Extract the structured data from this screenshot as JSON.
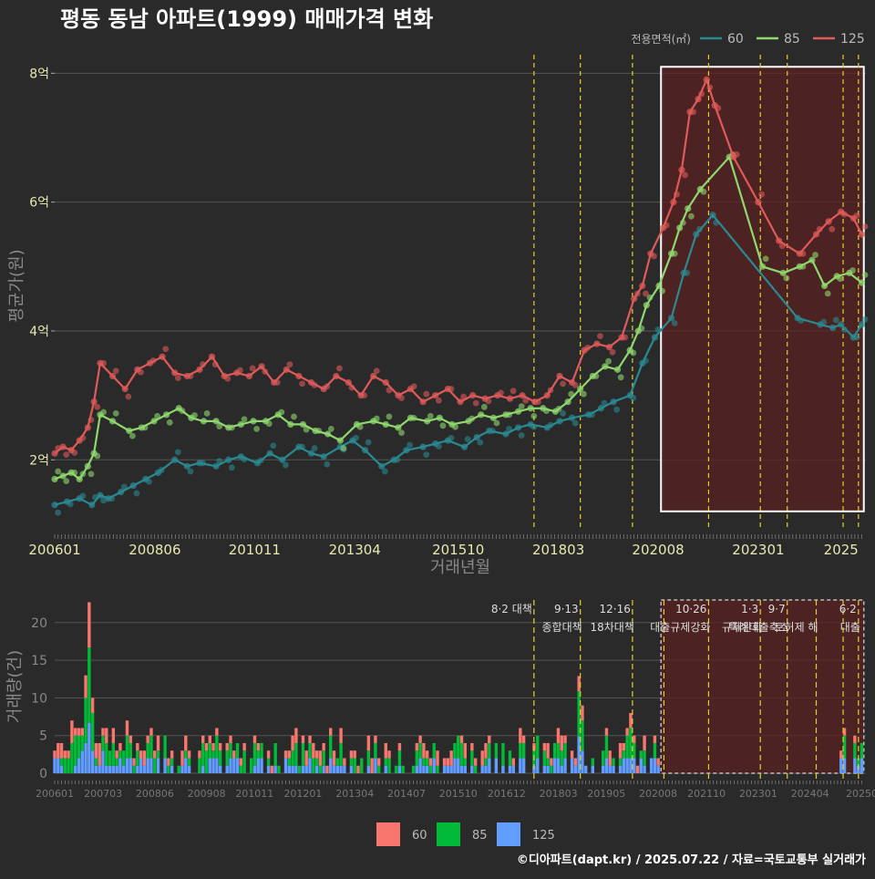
{
  "title": "평동 동남 아파트(1999) 매매가격 변화",
  "footer": "©디아파트(dapt.kr) / 2025.07.22 / 자료=국토교통부 실거래가",
  "colors": {
    "background": "#2a2a2b",
    "grid": "#555555",
    "s60": "#2a8a91",
    "s85": "#8fd86e",
    "s125": "#e05a5a",
    "b60": "#f8766d",
    "b85": "#00ba38",
    "b125": "#619cff",
    "policy": "#e6d02a",
    "highlight": "#5a2020"
  },
  "chart_data": [
    {
      "type": "line",
      "title": "평동 동남 아파트(1999) 매매가격 변화",
      "xlabel": "거래년월",
      "ylabel": "평균가(원)",
      "xlim": [
        2006.0,
        2025.6
      ],
      "ylim": [
        0.9,
        8.5
      ],
      "y_unit": "억",
      "yticks": [
        {
          "v": 2,
          "label": "2억"
        },
        {
          "v": 4,
          "label": "4억"
        },
        {
          "v": 6,
          "label": "6억"
        },
        {
          "v": 8,
          "label": "8억"
        }
      ],
      "xticks": [
        {
          "t": 2006.0,
          "label": "200601"
        },
        {
          "t": 2008.42,
          "label": "200806"
        },
        {
          "t": 2010.83,
          "label": "201011"
        },
        {
          "t": 2013.25,
          "label": "201304"
        },
        {
          "t": 2015.75,
          "label": "201510"
        },
        {
          "t": 2018.17,
          "label": "201803"
        },
        {
          "t": 2020.58,
          "label": "202008"
        },
        {
          "t": 2023.0,
          "label": "202301"
        },
        {
          "t": 2025.0,
          "label": "2025"
        }
      ],
      "legend": {
        "title": "전용면적(㎡)",
        "position": "top-right",
        "entries": [
          "60",
          "85",
          "125"
        ]
      },
      "highlight_range": {
        "x": [
          2020.65,
          2025.55
        ],
        "y": [
          1.2,
          8.1
        ]
      },
      "policy_dates": [
        2017.58,
        2018.7,
        2019.96,
        2021.8,
        2023.05,
        2023.7,
        2025.05,
        2025.42
      ],
      "series": [
        {
          "name": "60",
          "color": "#2a8a91",
          "x": [
            2006.0,
            2006.3,
            2006.6,
            2006.9,
            2007.1,
            2007.3,
            2007.6,
            2007.9,
            2008.2,
            2008.5,
            2008.9,
            2009.2,
            2009.5,
            2009.9,
            2010.2,
            2010.5,
            2010.9,
            2011.2,
            2011.5,
            2011.9,
            2012.2,
            2012.5,
            2012.9,
            2013.2,
            2013.5,
            2013.9,
            2014.2,
            2014.5,
            2014.9,
            2015.2,
            2015.5,
            2015.9,
            2016.2,
            2016.5,
            2016.9,
            2017.2,
            2017.5,
            2017.9,
            2018.2,
            2018.5,
            2018.9,
            2019.2,
            2019.5,
            2019.9,
            2020.2,
            2020.5,
            2020.9,
            2021.2,
            2021.5,
            2021.9,
            2023.95,
            2024.5,
            2024.8,
            2025.0,
            2025.3,
            2025.5
          ],
          "y": [
            1.3,
            1.35,
            1.4,
            1.3,
            1.45,
            1.4,
            1.5,
            1.6,
            1.7,
            1.8,
            2.0,
            1.9,
            1.95,
            1.9,
            2.0,
            2.05,
            1.95,
            2.1,
            2.0,
            2.2,
            2.1,
            2.05,
            2.2,
            2.3,
            2.15,
            1.9,
            2.0,
            2.15,
            2.2,
            2.25,
            2.3,
            2.2,
            2.35,
            2.45,
            2.4,
            2.5,
            2.55,
            2.5,
            2.6,
            2.65,
            2.7,
            2.8,
            2.9,
            3.0,
            3.5,
            3.9,
            4.2,
            4.9,
            5.5,
            5.8,
            4.2,
            4.1,
            4.05,
            4.1,
            3.9,
            4.1
          ]
        },
        {
          "name": "85",
          "color": "#8fd86e",
          "x": [
            2006.0,
            2006.2,
            2006.4,
            2006.6,
            2006.8,
            2006.95,
            2007.1,
            2007.4,
            2007.8,
            2008.1,
            2008.4,
            2008.7,
            2009.0,
            2009.3,
            2009.6,
            2009.9,
            2010.2,
            2010.5,
            2010.8,
            2011.1,
            2011.4,
            2011.7,
            2012.0,
            2012.3,
            2012.6,
            2012.9,
            2013.3,
            2013.7,
            2014.0,
            2014.3,
            2014.6,
            2015.0,
            2015.3,
            2015.6,
            2016.0,
            2016.3,
            2016.6,
            2016.9,
            2017.2,
            2017.5,
            2017.8,
            2018.1,
            2018.4,
            2018.7,
            2019.0,
            2019.3,
            2019.6,
            2019.9,
            2020.1,
            2020.3,
            2020.6,
            2020.9,
            2021.1,
            2021.3,
            2021.6,
            2022.3,
            2023.1,
            2023.6,
            2024.0,
            2024.3,
            2024.6,
            2024.9,
            2025.2,
            2025.5
          ],
          "y": [
            1.7,
            1.75,
            1.8,
            1.7,
            1.9,
            2.1,
            2.7,
            2.6,
            2.45,
            2.5,
            2.6,
            2.7,
            2.8,
            2.65,
            2.6,
            2.6,
            2.5,
            2.55,
            2.6,
            2.6,
            2.7,
            2.55,
            2.55,
            2.45,
            2.4,
            2.3,
            2.55,
            2.6,
            2.55,
            2.5,
            2.65,
            2.6,
            2.65,
            2.55,
            2.6,
            2.7,
            2.65,
            2.7,
            2.75,
            2.8,
            2.8,
            2.75,
            2.9,
            3.1,
            3.3,
            3.45,
            3.4,
            3.7,
            4.0,
            4.4,
            4.7,
            5.2,
            5.6,
            5.9,
            6.2,
            6.7,
            5.0,
            4.9,
            5.0,
            5.1,
            4.7,
            4.85,
            4.9,
            4.75
          ]
        },
        {
          "name": "125",
          "color": "#e05a5a",
          "x": [
            2006.0,
            2006.2,
            2006.4,
            2006.6,
            2006.8,
            2006.95,
            2007.1,
            2007.4,
            2007.7,
            2008.0,
            2008.3,
            2008.6,
            2008.9,
            2009.2,
            2009.5,
            2009.8,
            2010.1,
            2010.4,
            2010.7,
            2011.0,
            2011.3,
            2011.6,
            2011.9,
            2012.2,
            2012.5,
            2012.8,
            2013.1,
            2013.4,
            2013.7,
            2014.0,
            2014.3,
            2014.6,
            2014.9,
            2015.2,
            2015.5,
            2015.8,
            2016.1,
            2016.4,
            2016.7,
            2017.0,
            2017.3,
            2017.6,
            2017.9,
            2018.2,
            2018.5,
            2018.8,
            2019.1,
            2019.4,
            2019.7,
            2020.0,
            2020.2,
            2020.4,
            2020.7,
            2020.95,
            2021.15,
            2021.35,
            2021.55,
            2021.75,
            2021.95,
            2022.4,
            2023.0,
            2023.5,
            2024.0,
            2024.4,
            2024.7,
            2025.0,
            2025.3,
            2025.5
          ],
          "y": [
            2.1,
            2.2,
            2.15,
            2.3,
            2.5,
            2.9,
            3.5,
            3.3,
            3.1,
            3.4,
            3.5,
            3.6,
            3.35,
            3.3,
            3.4,
            3.6,
            3.3,
            3.35,
            3.3,
            3.45,
            3.2,
            3.4,
            3.3,
            3.2,
            3.1,
            3.3,
            3.2,
            3.0,
            3.3,
            3.2,
            3.0,
            3.1,
            2.9,
            3.0,
            3.1,
            2.9,
            3.0,
            2.95,
            3.0,
            2.95,
            3.0,
            2.9,
            3.0,
            3.3,
            3.2,
            3.7,
            3.8,
            3.75,
            3.9,
            4.5,
            4.7,
            5.2,
            5.6,
            6.0,
            6.5,
            7.4,
            7.6,
            7.9,
            7.5,
            6.7,
            6.0,
            5.4,
            5.2,
            5.5,
            5.7,
            5.85,
            5.75,
            5.5
          ]
        }
      ]
    },
    {
      "type": "bar",
      "stacked": true,
      "ylabel": "거래량(건)",
      "ylim": [
        0,
        23
      ],
      "yticks": [
        0,
        5,
        10,
        15,
        20
      ],
      "xticks": [
        {
          "t": 2006.0,
          "label": "200601"
        },
        {
          "t": 2007.17,
          "label": "200703"
        },
        {
          "t": 2008.42,
          "label": "200806"
        },
        {
          "t": 2009.67,
          "label": "200908"
        },
        {
          "t": 2010.83,
          "label": "201011"
        },
        {
          "t": 2012.0,
          "label": "201201"
        },
        {
          "t": 2013.25,
          "label": "201304"
        },
        {
          "t": 2014.5,
          "label": "201407"
        },
        {
          "t": 2015.75,
          "label": "201510"
        },
        {
          "t": 2016.92,
          "label": "201612"
        },
        {
          "t": 2018.17,
          "label": "201803"
        },
        {
          "t": 2019.33,
          "label": "201905"
        },
        {
          "t": 2020.58,
          "label": "202008"
        },
        {
          "t": 2021.75,
          "label": "202110"
        },
        {
          "t": 2023.0,
          "label": "202301"
        },
        {
          "t": 2024.25,
          "label": "202404"
        },
        {
          "t": 2025.5,
          "label": "20250"
        }
      ],
      "legend": {
        "position": "bottom",
        "entries": [
          "60",
          "85",
          "125"
        ]
      },
      "highlight_range": [
        2020.65,
        2025.55
      ],
      "policies": [
        {
          "t": 2017.58,
          "label1": "8·2 대책",
          "label2": ""
        },
        {
          "t": 2018.7,
          "label1": "9·13",
          "label2": "종합대책"
        },
        {
          "t": 2019.96,
          "label1": "12·16",
          "label2": "18차대책"
        },
        {
          "t": 2020.72,
          "label1": "",
          "label2": ""
        },
        {
          "t": 2021.8,
          "label1": "10·26",
          "label2": "대출규제강화"
        },
        {
          "t": 2023.05,
          "label1": "1·3",
          "label2": "규제완화"
        },
        {
          "t": 2023.7,
          "label1": "9·7",
          "label2": "특례대출축소"
        },
        {
          "t": 2024.4,
          "label1": "",
          "label2": "토허제 해"
        },
        {
          "t": 2025.05,
          "label1": "",
          "label2": ""
        },
        {
          "t": 2025.42,
          "label1": "6·2",
          "label2": "대출"
        }
      ],
      "bar_spikes": [
        {
          "t": 2006.85,
          "s60": 6,
          "s85": 10,
          "s125": 6.7
        },
        {
          "t": 2006.78,
          "s60": 3,
          "s85": 6,
          "s125": 4
        },
        {
          "t": 2006.93,
          "s60": 2,
          "s85": 5,
          "s125": 3
        },
        {
          "t": 2018.68,
          "s60": 2,
          "s85": 6,
          "s125": 4.9
        },
        {
          "t": 2018.76,
          "s60": 2,
          "s85": 4,
          "s125": 3
        },
        {
          "t": 2019.95,
          "s60": 2,
          "s85": 4,
          "s125": 2
        }
      ]
    }
  ]
}
